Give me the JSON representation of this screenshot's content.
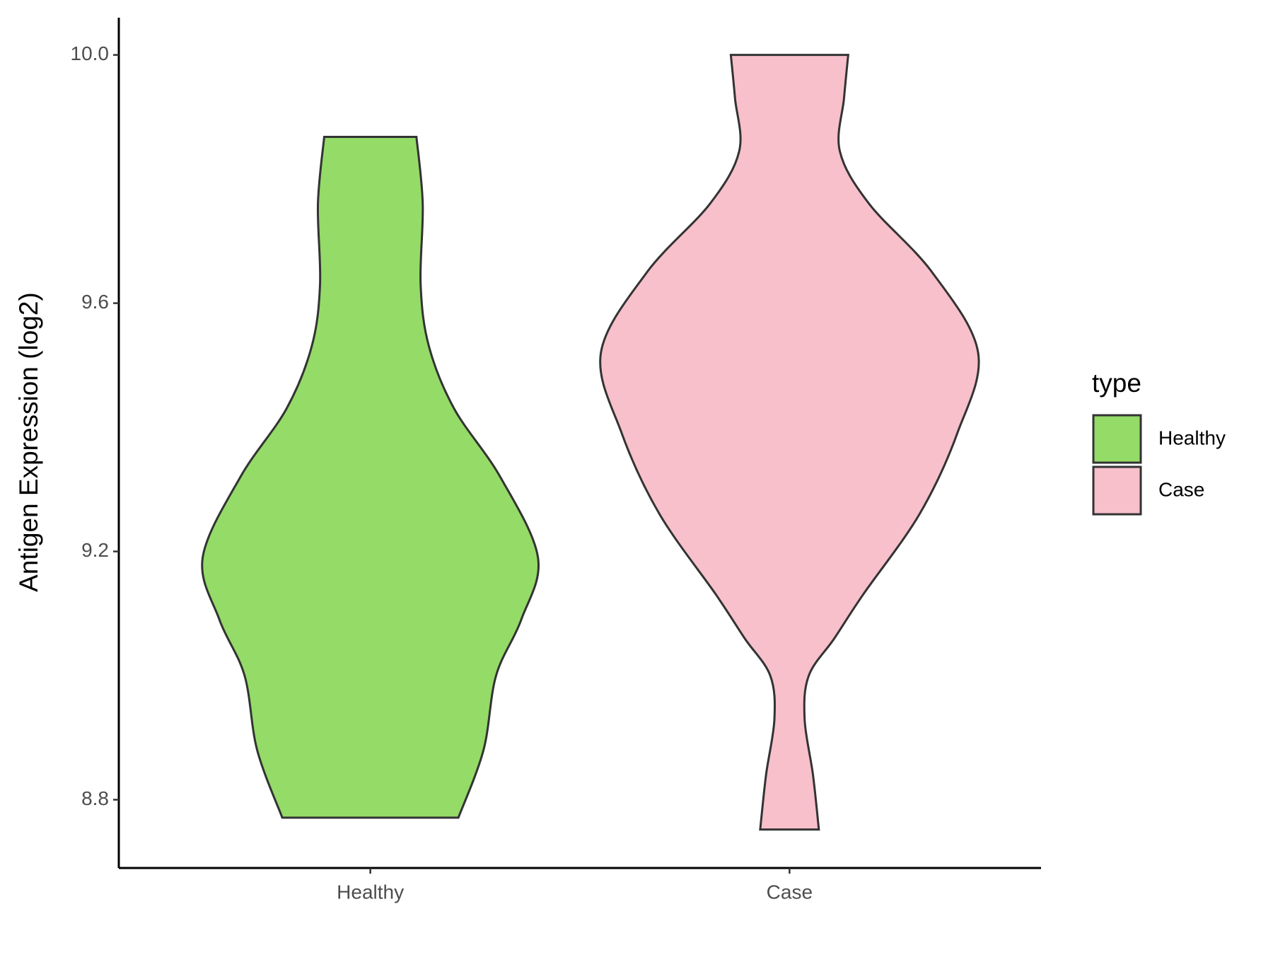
{
  "chart_data": {
    "type": "violin",
    "y_label": "Antigen Expression (log2)",
    "categories": [
      "Healthy",
      "Case"
    ],
    "legend_title": "type",
    "legend_position": "right",
    "series": [
      {
        "name": "Healthy",
        "color": "#94db68",
        "y": [
          9.868,
          9.76,
          9.63,
          9.53,
          9.43,
          9.32,
          9.19,
          9.09,
          9.0,
          8.88,
          8.771
        ],
        "widths": [
          0.11,
          0.125,
          0.12,
          0.14,
          0.2,
          0.31,
          0.4,
          0.36,
          0.3,
          0.27,
          0.21
        ]
      },
      {
        "name": "Case",
        "color": "#f7c0cb",
        "y": [
          10.0,
          9.93,
          9.845,
          9.76,
          9.65,
          9.52,
          9.39,
          9.26,
          9.13,
          9.06,
          9.0,
          8.93,
          8.84,
          8.752
        ],
        "widths": [
          0.14,
          0.13,
          0.12,
          0.19,
          0.34,
          0.45,
          0.4,
          0.31,
          0.175,
          0.107,
          0.046,
          0.036,
          0.056,
          0.07
        ]
      }
    ],
    "ylim": [
      8.69,
      10.06
    ],
    "yticks": [
      {
        "value": 8.8,
        "label": "8.8"
      },
      {
        "value": 9.2,
        "label": "9.2"
      },
      {
        "value": 9.6,
        "label": "9.6"
      },
      {
        "value": 10.0,
        "label": "10.0"
      }
    ]
  }
}
